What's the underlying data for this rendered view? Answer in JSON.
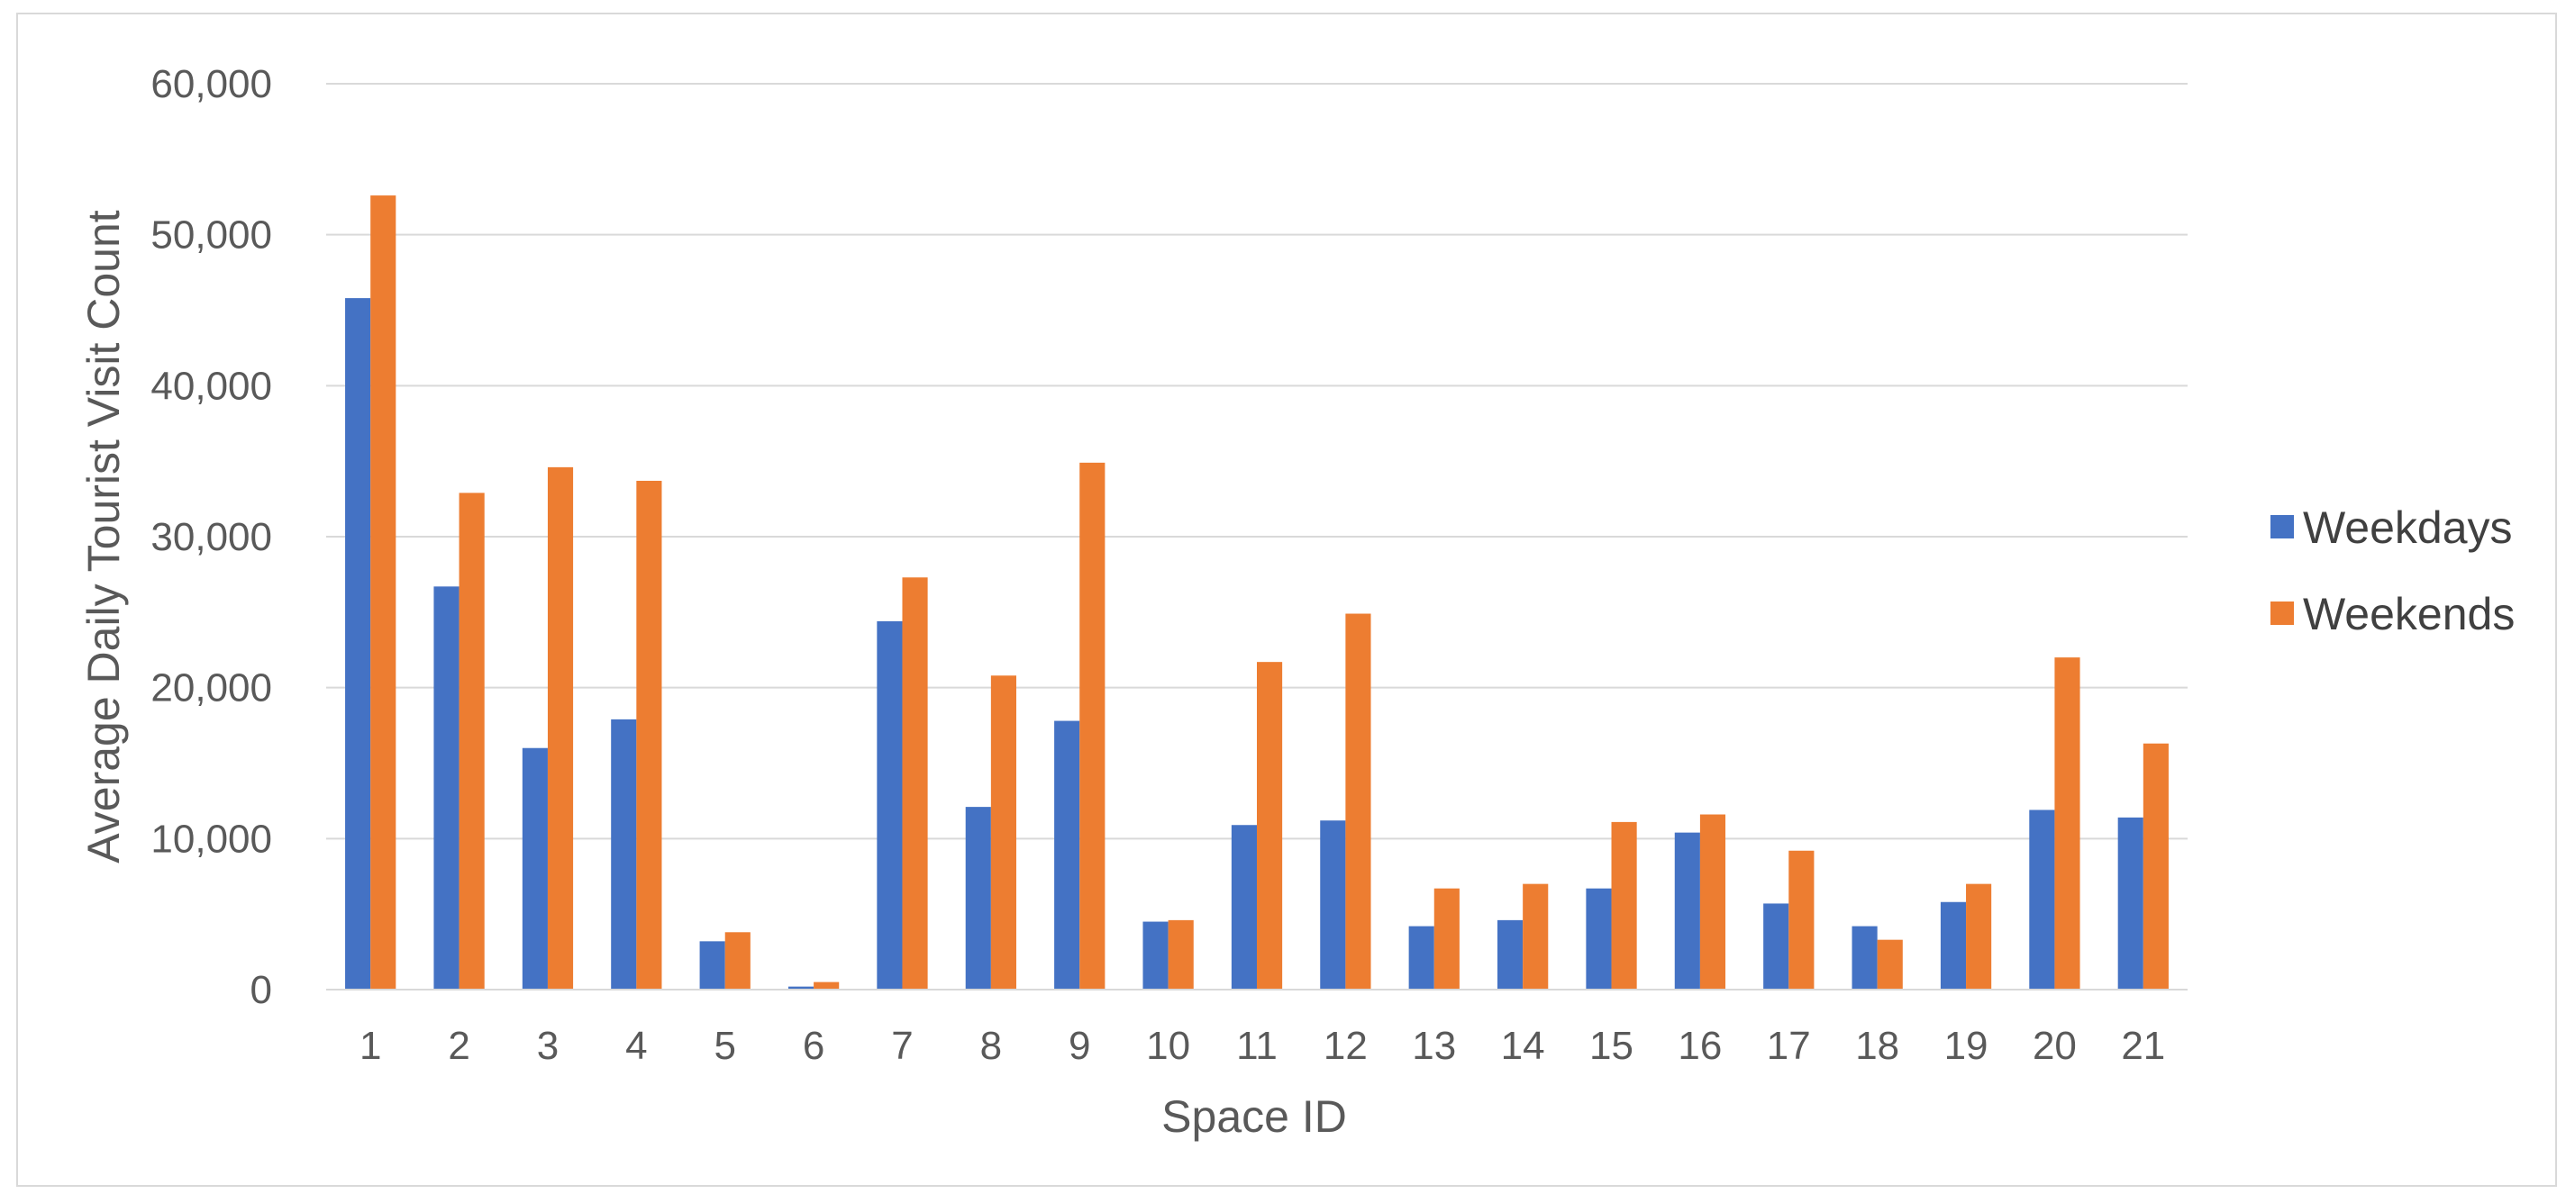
{
  "chart_data": {
    "type": "bar",
    "xlabel": "Space ID",
    "ylabel": "Average Daily Tourist Visit Count",
    "ylim": [
      0,
      60000
    ],
    "yticks": [
      0,
      10000,
      20000,
      30000,
      40000,
      50000,
      60000
    ],
    "ytick_labels": [
      "0",
      "10,000",
      "20,000",
      "30,000",
      "40,000",
      "50,000",
      "60,000"
    ],
    "grid": true,
    "legend_position": "right",
    "categories": [
      "1",
      "2",
      "3",
      "4",
      "5",
      "6",
      "7",
      "8",
      "9",
      "10",
      "11",
      "12",
      "13",
      "14",
      "15",
      "16",
      "17",
      "18",
      "19",
      "20",
      "21"
    ],
    "series": [
      {
        "name": "Weekdays",
        "color": "#4472c4",
        "values": [
          45800,
          26700,
          16000,
          17900,
          3200,
          200,
          24400,
          12100,
          17800,
          4500,
          10900,
          11200,
          4200,
          4600,
          6700,
          10400,
          5700,
          4200,
          5800,
          11900,
          11400
        ]
      },
      {
        "name": "Weekends",
        "color": "#ed7d31",
        "values": [
          52600,
          32900,
          34600,
          33700,
          3800,
          500,
          27300,
          20800,
          34900,
          4600,
          21700,
          24900,
          6700,
          7000,
          11100,
          11600,
          9200,
          3300,
          7000,
          22000,
          16300
        ]
      }
    ]
  }
}
